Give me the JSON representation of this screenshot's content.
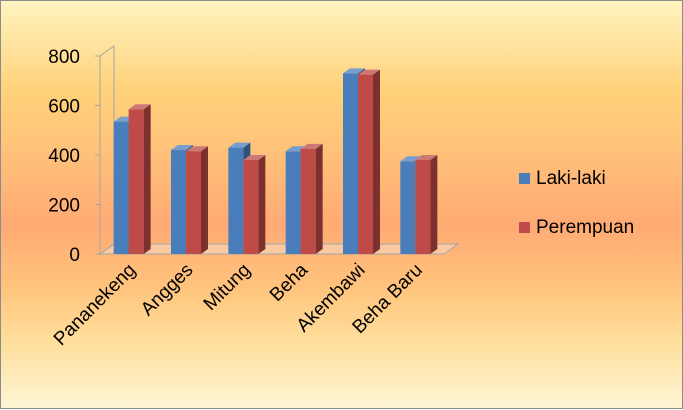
{
  "chart_data": {
    "type": "bar",
    "categories": [
      "Pananekeng",
      "Angges",
      "Mitung",
      "Beha",
      "Akembawi",
      "Beha Baru"
    ],
    "series": [
      {
        "name": "Laki-laki",
        "color": "#4a7ebb",
        "values": [
          535,
          420,
          430,
          415,
          730,
          375
        ]
      },
      {
        "name": "Perempuan",
        "color": "#be4b48",
        "values": [
          585,
          415,
          380,
          425,
          725,
          380
        ]
      }
    ],
    "y_ticks": [
      "0",
      "200",
      "400",
      "600",
      "800"
    ],
    "ylim": [
      0,
      800
    ],
    "legend_position": "right",
    "grid": false,
    "style": "3d-clustered-column"
  }
}
